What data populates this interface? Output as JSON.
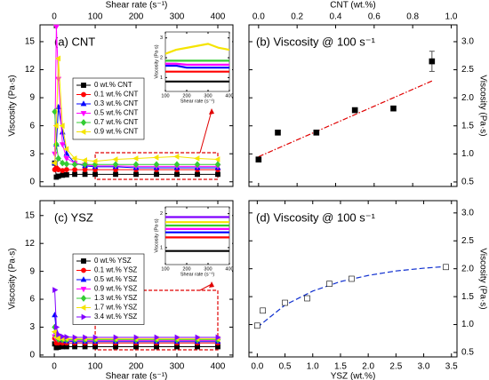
{
  "chart_data": [
    {
      "type": "line",
      "title": "(a)  CNT",
      "xlabel": "Shear rate (s⁻¹)",
      "ylabel": "Viscosity (Pa·s)",
      "xaxis": "top",
      "yaxis": "left",
      "legend": "left",
      "x": [
        1,
        5,
        10,
        20,
        30,
        50,
        75,
        100,
        150,
        200,
        250,
        300,
        350,
        400
      ],
      "xlim": [
        -35,
        437
      ],
      "xticks": [
        0,
        100,
        200,
        300,
        400
      ],
      "ylim": [
        -0.5,
        16.8
      ],
      "yticks": [
        0,
        3,
        6,
        9,
        12,
        15
      ],
      "series": [
        {
          "name": "0 wt.% CNT",
          "color": "#000000",
          "marker": "square",
          "values": [
            2.0,
            0.5,
            0.6,
            0.7,
            0.75,
            0.8,
            0.8,
            0.8,
            0.8,
            0.8,
            0.8,
            0.8,
            0.8,
            0.8
          ]
        },
        {
          "name": "0.1 wt.% CNT",
          "color": "#ff0000",
          "marker": "circle",
          "values": [
            1.3,
            1.5,
            1.3,
            1.2,
            1.3,
            1.3,
            1.3,
            1.3,
            1.3,
            1.3,
            1.3,
            1.3,
            1.3,
            1.3
          ]
        },
        {
          "name": "0.3 wt.% CNT",
          "color": "#0000ff",
          "marker": "triangle-up",
          "values": [
            2.0,
            4.0,
            8.0,
            5.3,
            3.0,
            2.0,
            1.7,
            1.6,
            1.6,
            1.5,
            1.5,
            1.5,
            1.5,
            1.5
          ]
        },
        {
          "name": "0.5 wt.% CNT",
          "color": "#ff00ff",
          "marker": "triangle-down",
          "values": [
            3.0,
            16.6,
            11.0,
            4.0,
            2.5,
            2.0,
            1.8,
            1.7,
            1.7,
            1.65,
            1.65,
            1.65,
            1.65,
            1.65
          ]
        },
        {
          "name": "0.7 wt.% CNT",
          "color": "#33cc33",
          "marker": "diamond",
          "values": [
            7.5,
            4.0,
            2.5,
            2.0,
            1.9,
            1.85,
            1.85,
            1.85,
            1.85,
            1.85,
            1.85,
            1.85,
            1.85,
            1.85
          ]
        },
        {
          "name": "0.9 wt.% CNT",
          "color": "#f5e400",
          "marker": "triangle-left",
          "values": [
            2.0,
            6.0,
            13.2,
            6.0,
            3.5,
            2.5,
            2.3,
            2.2,
            2.4,
            2.5,
            2.6,
            2.7,
            2.5,
            2.4
          ]
        }
      ],
      "inset": {
        "xlim": [
          100,
          400
        ],
        "ylim": [
          0.3,
          3.3
        ],
        "xticks": [
          100,
          200,
          300,
          400
        ],
        "yticks": [
          1,
          2,
          3
        ],
        "xlabel": "Shear rate (s⁻¹)",
        "ylabel": "Viscosity (Pa·s)"
      }
    },
    {
      "type": "scatter",
      "title": "(b)  Viscosity @ 100 s⁻¹",
      "xlabel": "CNT (wt.%)",
      "ylabel": "Viscosity (Pa·s)",
      "xaxis": "top",
      "yaxis": "right",
      "x": [
        0,
        0.1,
        0.3,
        0.5,
        0.7,
        0.9
      ],
      "values": [
        0.9,
        1.38,
        1.38,
        1.78,
        1.81,
        2.65
      ],
      "errors": [
        0.03,
        0.03,
        0.03,
        0.03,
        0.03,
        0.18
      ],
      "color": "#000000",
      "marker": "square",
      "xlim": [
        -0.05,
        1.03
      ],
      "xticks": [
        {
          "value": 0,
          "label": "0.0"
        },
        0.2,
        0.4,
        0.6,
        0.8,
        {
          "value": 1,
          "label": "1.0"
        }
      ],
      "ylim": [
        0.42,
        3.3
      ],
      "yticks": [
        0.5,
        {
          "value": 1,
          "label": "1.0"
        },
        1.5,
        {
          "value": 2,
          "label": "2.0"
        },
        2.5,
        {
          "value": 3,
          "label": "3.0"
        }
      ],
      "fit": {
        "x": [
          0,
          0.9
        ],
        "values": [
          0.95,
          2.3
        ],
        "color": "#e00000",
        "dash": "6 2 1.5 2"
      }
    },
    {
      "type": "line",
      "title": "(c)  YSZ",
      "xlabel": "Shear rate (s⁻¹)",
      "ylabel": "Viscosity (Pa·s)",
      "xaxis": "bottom",
      "yaxis": "left",
      "legend": "left",
      "x": [
        1,
        5,
        10,
        20,
        30,
        50,
        75,
        100,
        150,
        200,
        250,
        300,
        350,
        400
      ],
      "xlim": [
        -35,
        437
      ],
      "xticks": [
        0,
        100,
        200,
        300,
        400
      ],
      "ylim": [
        -0.2,
        16.6
      ],
      "yticks": [
        0,
        3,
        6,
        9,
        12,
        15
      ],
      "series": [
        {
          "name": "0 wt.% YSZ",
          "color": "#000000",
          "marker": "square",
          "values": [
            1.2,
            0.8,
            0.85,
            0.9,
            0.9,
            0.9,
            0.9,
            0.9,
            0.9,
            0.9,
            0.9,
            0.9,
            0.9,
            0.9
          ]
        },
        {
          "name": "0.1 wt.% YSZ",
          "color": "#ff0000",
          "marker": "circle",
          "values": [
            1.8,
            1.3,
            1.3,
            1.3,
            1.3,
            1.3,
            1.3,
            1.3,
            1.3,
            1.3,
            1.3,
            1.3,
            1.3,
            1.3
          ]
        },
        {
          "name": "0.5 wt.% YSZ",
          "color": "#0000ff",
          "marker": "triangle-up",
          "values": [
            4.3,
            2.5,
            1.8,
            1.6,
            1.5,
            1.45,
            1.45,
            1.45,
            1.45,
            1.45,
            1.45,
            1.45,
            1.45,
            1.45
          ]
        },
        {
          "name": "0.9 wt.% YSZ",
          "color": "#ff00ff",
          "marker": "triangle-down",
          "values": [
            2.0,
            1.8,
            1.7,
            1.6,
            1.55,
            1.55,
            1.55,
            1.55,
            1.55,
            1.55,
            1.55,
            1.55,
            1.55,
            1.55
          ]
        },
        {
          "name": "1.3 wt.% YSZ",
          "color": "#33cc33",
          "marker": "diamond",
          "values": [
            3.0,
            2.0,
            1.7,
            1.65,
            1.65,
            1.65,
            1.65,
            1.65,
            1.65,
            1.65,
            1.65,
            1.65,
            1.65,
            1.65
          ]
        },
        {
          "name": "1.7 wt.% YSZ",
          "color": "#f5e400",
          "marker": "triangle-left",
          "values": [
            2.5,
            1.9,
            1.8,
            1.75,
            1.75,
            1.75,
            1.75,
            1.75,
            1.75,
            1.75,
            1.75,
            1.75,
            1.75,
            1.75
          ]
        },
        {
          "name": "3.4 wt.% YSZ",
          "color": "#8000ff",
          "marker": "triangle-right",
          "values": [
            7.0,
            3.0,
            2.2,
            2.0,
            1.95,
            1.9,
            1.9,
            1.9,
            1.9,
            1.9,
            1.9,
            1.9,
            1.9,
            1.9
          ]
        }
      ],
      "inset": {
        "xlim": [
          100,
          400
        ],
        "ylim": [
          0.5,
          2.2
        ],
        "xticks": [
          100,
          200,
          300,
          400
        ],
        "yticks": [
          1,
          2
        ],
        "xlabel": "Shear rate (s⁻¹)",
        "ylabel": "Viscosity (Pa·s)"
      }
    },
    {
      "type": "scatter",
      "title": "(d)  Viscosity @ 100 s⁻¹",
      "xlabel": "YSZ (wt.%)",
      "ylabel": "Viscosity (Pa·s)",
      "xaxis": "bottom",
      "yaxis": "right",
      "x": [
        0,
        0.1,
        0.5,
        0.9,
        1.3,
        1.7,
        3.4
      ],
      "values": [
        0.98,
        1.25,
        1.39,
        1.47,
        1.73,
        1.82,
        2.03
      ],
      "color": "#000000",
      "marker": "square-open",
      "xlim": [
        -0.15,
        3.6
      ],
      "xticks": [
        {
          "value": 0,
          "label": "0.0"
        },
        0.5,
        {
          "value": 1,
          "label": "1.0"
        },
        1.5,
        {
          "value": 2,
          "label": "2.0"
        },
        2.5,
        {
          "value": 3,
          "label": "3.0"
        },
        3.5
      ],
      "ylim": [
        0.42,
        3.22
      ],
      "yticks": [
        0.5,
        {
          "value": 1,
          "label": "1.0"
        },
        1.5,
        {
          "value": 2,
          "label": "2.0"
        },
        2.5,
        {
          "value": 3,
          "label": "3.0"
        }
      ],
      "fit": {
        "x": [
          0,
          0.5,
          1,
          1.5,
          2,
          2.5,
          3,
          3.4
        ],
        "values": [
          0.95,
          1.35,
          1.6,
          1.77,
          1.88,
          1.96,
          2.01,
          2.04
        ],
        "color": "#1030d0",
        "dash": "6 3"
      }
    }
  ]
}
